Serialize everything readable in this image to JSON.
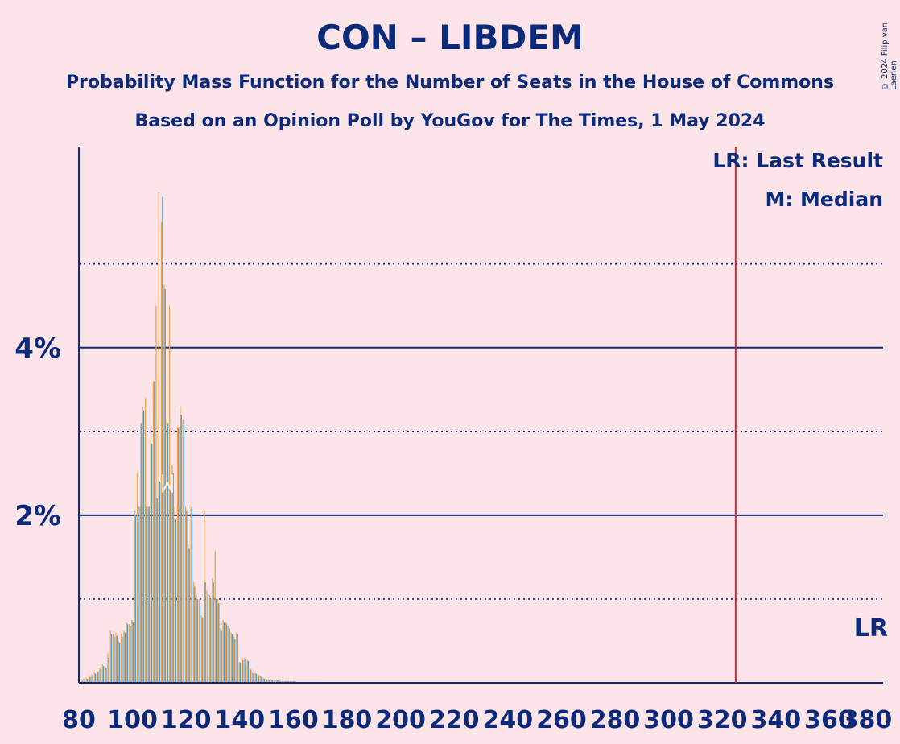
{
  "chart_data": {
    "type": "bar",
    "title": "CON – LIBDEM",
    "subtitle": "Probability Mass Function for the Number of Seats in the House of Commons",
    "subtitle2": "Based on an Opinion Poll by YouGov for The Times, 1 May 2024",
    "copyright": "© 2024 Filip van Laenen",
    "xlabel": "",
    "ylabel": "",
    "xlim": [
      80,
      380
    ],
    "ylim": [
      0,
      6.4
    ],
    "x_ticks": [
      "80",
      "100",
      "120",
      "140",
      "160",
      "180",
      "200",
      "220",
      "240",
      "260",
      "280",
      "300",
      "320",
      "340",
      "360",
      "380"
    ],
    "y_ticks": [
      {
        "value": 2,
        "label": "2%"
      },
      {
        "value": 4,
        "label": "4%"
      }
    ],
    "grid_minor": [
      1,
      3,
      5
    ],
    "last_result": 325,
    "last_result_label": "LR",
    "median": 113,
    "legend": [
      "LR: Last Result",
      "M: Median"
    ],
    "colors": {
      "bar_orange": "#f4a340",
      "bar_blue": "#4a9fd6",
      "grid": "#0b2a7a",
      "lr_line": "#d6213a",
      "background": "#fde4e8",
      "text": "#0b2a7a"
    },
    "series": [
      {
        "name": "orange",
        "x": [
          81,
          82,
          83,
          84,
          85,
          86,
          87,
          88,
          89,
          90,
          91,
          92,
          93,
          94,
          95,
          96,
          97,
          98,
          99,
          100,
          101,
          102,
          103,
          104,
          105,
          106,
          107,
          108,
          109,
          110,
          111,
          112,
          113,
          114,
          115,
          116,
          117,
          118,
          119,
          120,
          121,
          122,
          123,
          124,
          125,
          126,
          127,
          128,
          129,
          130,
          131,
          132,
          133,
          134,
          135,
          136,
          137,
          138,
          139,
          140,
          141,
          142,
          143,
          144,
          145,
          146,
          147,
          148,
          149,
          150,
          151,
          152,
          153,
          154,
          155,
          156,
          157,
          158,
          159,
          160,
          161,
          162,
          163,
          164,
          165,
          166,
          167,
          168,
          169,
          170
        ],
        "values": [
          0.03,
          0.05,
          0.06,
          0.08,
          0.1,
          0.12,
          0.14,
          0.18,
          0.22,
          0.2,
          0.35,
          0.62,
          0.58,
          0.6,
          0.5,
          0.58,
          0.62,
          0.72,
          0.7,
          0.75,
          2.05,
          2.5,
          2.1,
          3.3,
          3.4,
          2.1,
          2.9,
          3.6,
          4.5,
          5.85,
          5.5,
          4.75,
          3.15,
          4.5,
          2.6,
          2.1,
          3.05,
          3.3,
          3.15,
          2.1,
          1.65,
          2.1,
          1.2,
          1.05,
          1.0,
          0.8,
          2.05,
          1.1,
          1.05,
          1.25,
          1.58,
          1.0,
          0.65,
          0.75,
          0.72,
          0.68,
          0.6,
          0.55,
          0.6,
          0.25,
          0.28,
          0.3,
          0.28,
          0.18,
          0.12,
          0.12,
          0.1,
          0.08,
          0.06,
          0.05,
          0.04,
          0.04,
          0.03,
          0.03,
          0.03,
          0.02,
          0.02,
          0.02,
          0.02,
          0.02,
          0.02,
          0.01,
          0.01,
          0.01,
          0.01,
          0.01,
          0.01,
          0.01,
          0.01,
          0.01
        ]
      },
      {
        "name": "blue",
        "x": [
          81,
          82,
          83,
          84,
          85,
          86,
          87,
          88,
          89,
          90,
          91,
          92,
          93,
          94,
          95,
          96,
          97,
          98,
          99,
          100,
          101,
          102,
          103,
          104,
          105,
          106,
          107,
          108,
          109,
          110,
          111,
          112,
          113,
          114,
          115,
          116,
          117,
          118,
          119,
          120,
          121,
          122,
          123,
          124,
          125,
          126,
          127,
          128,
          129,
          130,
          131,
          132,
          133,
          134,
          135,
          136,
          137,
          138,
          139,
          140,
          141,
          142,
          143,
          144,
          145,
          146,
          147,
          148,
          149,
          150,
          151,
          152,
          153,
          154,
          155,
          156,
          157,
          158,
          159,
          160,
          161,
          162,
          163,
          164,
          165,
          166,
          167,
          168,
          169,
          170
        ],
        "values": [
          0.02,
          0.04,
          0.05,
          0.07,
          0.09,
          0.11,
          0.13,
          0.16,
          0.2,
          0.18,
          0.3,
          0.58,
          0.55,
          0.56,
          0.48,
          0.55,
          0.6,
          0.7,
          0.68,
          0.72,
          2.0,
          2.1,
          3.1,
          3.25,
          2.1,
          2.1,
          2.85,
          3.6,
          2.2,
          2.4,
          5.8,
          4.7,
          3.1,
          2.3,
          2.5,
          1.95,
          3.05,
          3.2,
          3.1,
          2.05,
          1.6,
          2.1,
          1.15,
          1.0,
          0.95,
          0.78,
          1.2,
          1.05,
          1.0,
          1.2,
          1.0,
          0.95,
          0.62,
          0.72,
          0.7,
          0.65,
          0.58,
          0.52,
          0.58,
          0.24,
          0.27,
          0.28,
          0.26,
          0.16,
          0.11,
          0.11,
          0.09,
          0.07,
          0.05,
          0.04,
          0.04,
          0.03,
          0.03,
          0.03,
          0.02,
          0.02,
          0.02,
          0.02,
          0.02,
          0.02,
          0.01,
          0.01,
          0.01,
          0.01,
          0.01,
          0.01,
          0.01,
          0.01,
          0.01,
          0.01
        ]
      }
    ]
  }
}
